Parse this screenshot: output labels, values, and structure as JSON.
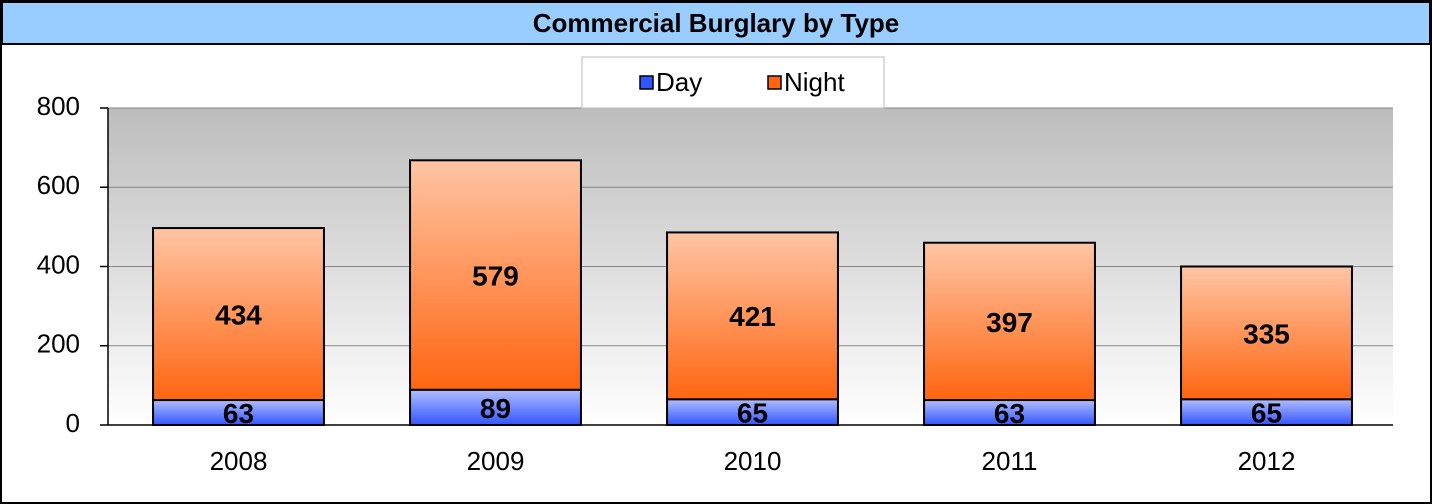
{
  "chart_data": {
    "type": "stacked_bar",
    "title": "Commercial Burglary by Type",
    "categories": [
      "2008",
      "2009",
      "2010",
      "2011",
      "2012"
    ],
    "series": [
      {
        "name": "Day",
        "color": "#3355ff",
        "values": [
          63,
          89,
          65,
          63,
          65
        ]
      },
      {
        "name": "Night",
        "color": "#ff6611",
        "values": [
          434,
          579,
          421,
          397,
          335
        ]
      }
    ],
    "ylim": [
      0,
      800
    ],
    "yticks": [
      0,
      200,
      400,
      600,
      800
    ],
    "grid": true,
    "legend": "top"
  }
}
